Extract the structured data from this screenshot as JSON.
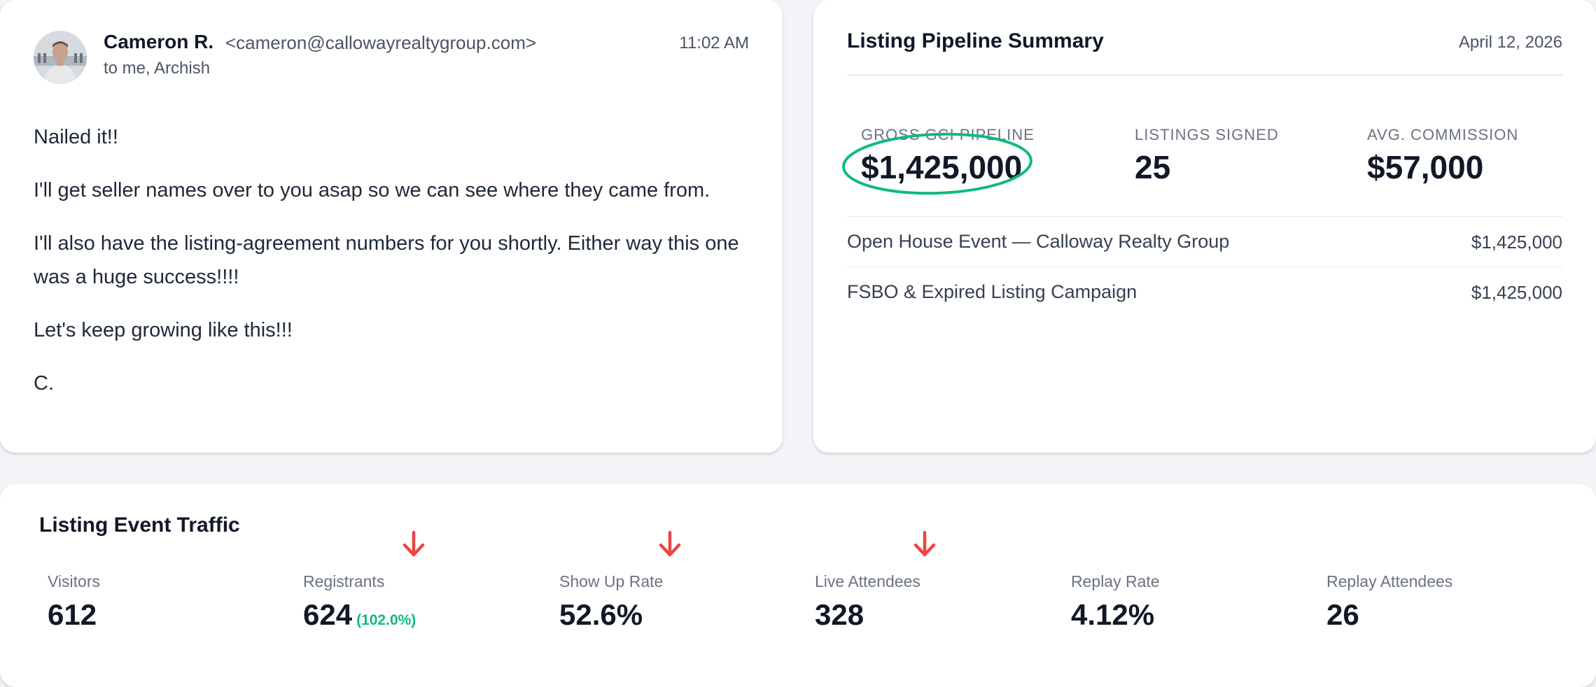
{
  "email": {
    "sender_name": "Cameron R.",
    "sender_email": "<cameron@callowayrealtygroup.com>",
    "time": "11:02 AM",
    "recipients": "to me, Archish",
    "body": [
      "Nailed it!!",
      "I'll get seller names over to you asap so we can see where they came from.",
      "I'll also have the listing-agreement numbers for you shortly. Either way this one was a huge success!!!!",
      "Let's keep growing like this!!!",
      "C."
    ]
  },
  "pipeline": {
    "title": "Listing Pipeline Summary",
    "date": "April 12, 2026",
    "metrics": [
      {
        "label": "GROSS GCI PIPELINE",
        "value": "$1,425,000"
      },
      {
        "label": "LISTINGS SIGNED",
        "value": "25"
      },
      {
        "label": "AVG. COMMISSION",
        "value": "$57,000"
      }
    ],
    "rows": [
      {
        "label": "Open House Event — Calloway Realty Group",
        "value": "$1,425,000"
      },
      {
        "label": "FSBO & Expired Listing Campaign",
        "value": "$1,425,000"
      }
    ],
    "highlight_color": "#10b981"
  },
  "traffic": {
    "title": "Listing Event Traffic",
    "stats": [
      {
        "label": "Visitors",
        "value": "612"
      },
      {
        "label": "Registrants",
        "value": "624",
        "pct": "(102.0%)"
      },
      {
        "label": "Show Up Rate",
        "value": "52.6%"
      },
      {
        "label": "Live Attendees",
        "value": "328"
      },
      {
        "label": "Replay Rate",
        "value": "4.12%"
      },
      {
        "label": "Replay Attendees",
        "value": "26"
      }
    ],
    "arrow_icon": "arrow-down-icon",
    "arrow_color": "#ef4444",
    "pct_color": "#10b981"
  }
}
